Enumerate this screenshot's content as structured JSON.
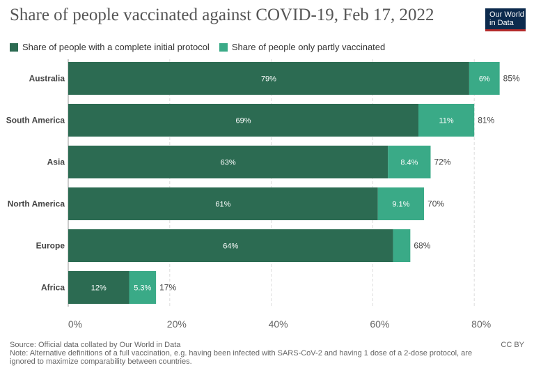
{
  "title": "Share of people vaccinated against COVID-19, Feb 17, 2022",
  "logo": {
    "line1": "Our World",
    "line2": "in Data"
  },
  "colors": {
    "complete": "#2c6b52",
    "partly": "#3aaa87",
    "grid": "#dddddd",
    "text": "#333333"
  },
  "chart_data": {
    "type": "bar",
    "orientation": "horizontal",
    "stacked": true,
    "categories": [
      "Australia",
      "South America",
      "Asia",
      "North America",
      "Europe",
      "Africa"
    ],
    "series": [
      {
        "name": "Share of people with a complete initial protocol",
        "values": [
          79,
          69,
          63,
          61,
          64,
          12
        ],
        "labels": [
          "79%",
          "69%",
          "63%",
          "61%",
          "64%",
          "12%"
        ]
      },
      {
        "name": "Share of people only partly vaccinated",
        "values": [
          6,
          11,
          8.4,
          9.1,
          3.4,
          5.3
        ],
        "labels": [
          "6%",
          "11%",
          "8.4%",
          "9.1%",
          "",
          "5.3%"
        ]
      }
    ],
    "totals": [
      "85%",
      "81%",
      "72%",
      "70%",
      "68%",
      "17%"
    ],
    "xlim": [
      0,
      85
    ],
    "xticks": [
      0,
      20,
      40,
      60,
      80
    ],
    "xtick_labels": [
      "0%",
      "20%",
      "40%",
      "60%",
      "80%"
    ],
    "grid": true,
    "legend_position": "top-left"
  },
  "footer": {
    "source": "Source: Official data collated by Our World in Data",
    "note": "Note: Alternative definitions of a full vaccination, e.g. having been infected with SARS-CoV-2 and having 1 dose of a 2-dose protocol, are ignored to maximize comparability between countries.",
    "license": "CC BY"
  }
}
